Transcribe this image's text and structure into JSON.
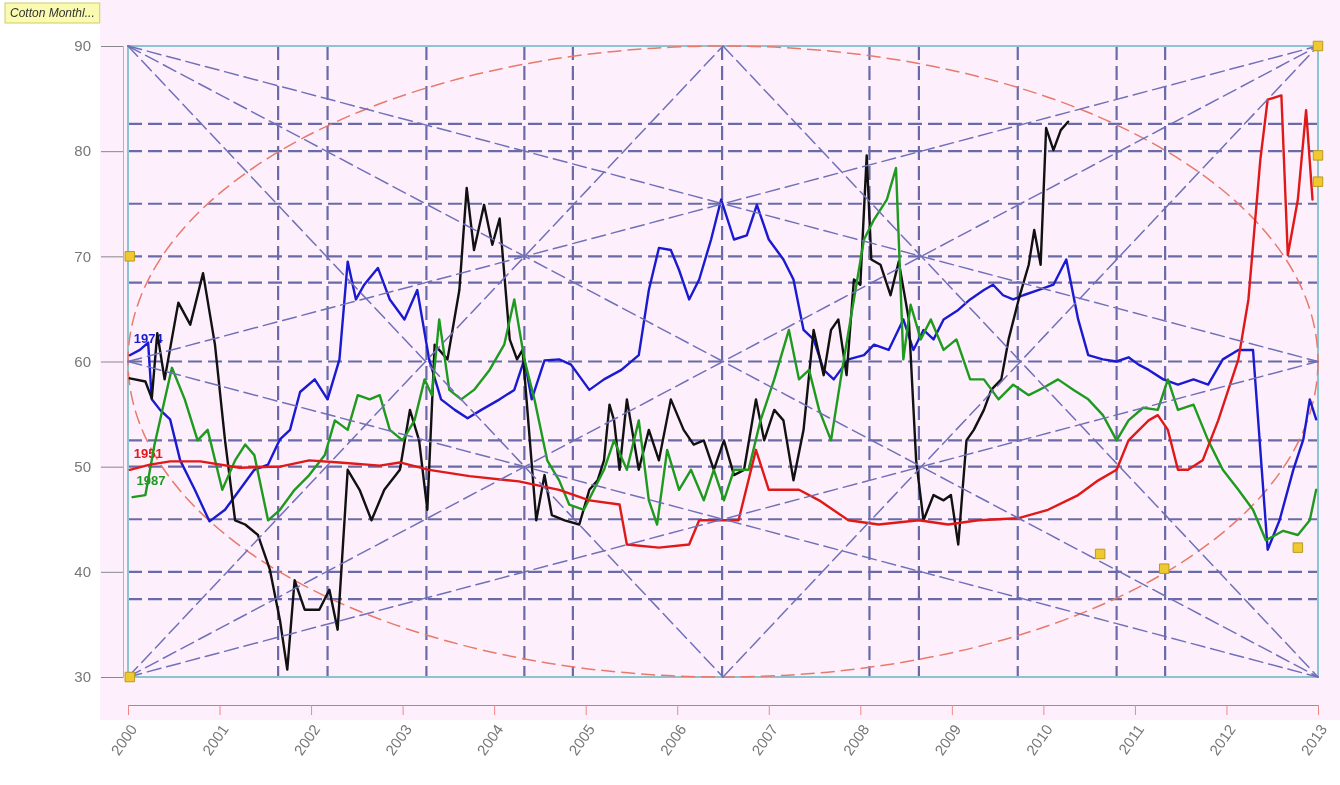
{
  "chart_data": {
    "type": "line",
    "title": "Cotton Monthl...",
    "xlim": [
      2000,
      2013
    ],
    "xticks": [
      2000,
      2001,
      2002,
      2003,
      2004,
      2005,
      2006,
      2007,
      2008,
      2009,
      2010,
      2011,
      2012,
      2013
    ],
    "ylim": [
      30,
      90
    ],
    "yticks": [
      30,
      40,
      50,
      60,
      70,
      80,
      90
    ],
    "grid": false,
    "line_style": "solid",
    "marker": "none",
    "series": [
      {
        "name": "1974",
        "color": "#1a1ad0",
        "x": [
          2000.02,
          2000.13,
          2000.22,
          2000.26,
          2000.35,
          2000.46,
          2000.57,
          2000.73,
          2000.89,
          2001.06,
          2001.22,
          2001.38,
          2001.53,
          2001.66,
          2001.77,
          2001.88,
          2002.04,
          2002.18,
          2002.31,
          2002.4,
          2002.49,
          2002.58,
          2002.73,
          2002.86,
          2003.02,
          2003.16,
          2003.29,
          2003.42,
          2003.57,
          2003.71,
          2003.86,
          2004.06,
          2004.22,
          2004.33,
          2004.41,
          2004.55,
          2004.71,
          2004.84,
          2005.04,
          2005.2,
          2005.39,
          2005.58,
          2005.69,
          2005.8,
          2005.93,
          2006.02,
          2006.13,
          2006.24,
          2006.37,
          2006.48,
          2006.62,
          2006.76,
          2006.87,
          2007.0,
          2007.16,
          2007.27,
          2007.38,
          2007.49,
          2007.6,
          2007.71,
          2007.87,
          2008.04,
          2008.15,
          2008.31,
          2008.47,
          2008.58,
          2008.69,
          2008.8,
          2008.91,
          2009.07,
          2009.2,
          2009.35,
          2009.45,
          2009.56,
          2009.67,
          2009.78,
          2009.95,
          2010.11,
          2010.25,
          2010.38,
          2010.49,
          2010.65,
          2010.8,
          2010.93,
          2011.04,
          2011.15,
          2011.31,
          2011.47,
          2011.64,
          2011.8,
          2011.96,
          2012.13,
          2012.29,
          2012.45,
          2012.58,
          2012.73,
          2012.84,
          2012.91,
          2012.98
        ],
        "values": [
          60.6,
          61.1,
          61.8,
          56.4,
          55.4,
          54.5,
          50.6,
          47.8,
          44.8,
          45.9,
          47.8,
          49.7,
          50.2,
          52.6,
          53.5,
          57.1,
          58.3,
          56.4,
          60.2,
          69.5,
          65.9,
          67.3,
          68.9,
          65.9,
          64.0,
          66.8,
          60.2,
          56.4,
          55.4,
          54.6,
          55.4,
          56.4,
          57.3,
          60.2,
          56.4,
          60.1,
          60.2,
          59.7,
          57.3,
          58.3,
          59.2,
          60.6,
          66.8,
          70.8,
          70.6,
          68.7,
          65.9,
          67.8,
          71.6,
          75.4,
          71.6,
          72.0,
          74.9,
          71.6,
          69.7,
          67.8,
          63.0,
          62.1,
          59.2,
          58.3,
          60.2,
          60.6,
          61.6,
          61.1,
          64.0,
          61.1,
          63.0,
          62.1,
          64.0,
          64.9,
          65.9,
          66.8,
          67.3,
          66.3,
          65.9,
          66.3,
          66.8,
          67.3,
          69.7,
          64.0,
          60.6,
          60.2,
          60.0,
          60.4,
          59.7,
          59.2,
          58.3,
          57.8,
          58.3,
          57.8,
          60.2,
          61.1,
          61.1,
          42.1,
          44.9,
          49.7,
          52.6,
          56.4,
          54.5
        ]
      },
      {
        "color": "#111111",
        "x": [
          2000.02,
          2000.19,
          2000.26,
          2000.32,
          2000.4,
          2000.55,
          2000.68,
          2000.82,
          2000.95,
          2001.06,
          2001.17,
          2001.28,
          2001.42,
          2001.55,
          2001.66,
          2001.74,
          2001.82,
          2001.93,
          2002.09,
          2002.2,
          2002.29,
          2002.4,
          2002.53,
          2002.66,
          2002.8,
          2002.97,
          2003.08,
          2003.18,
          2003.27,
          2003.35,
          2003.49,
          2003.62,
          2003.7,
          2003.78,
          2003.89,
          2003.98,
          2004.06,
          2004.17,
          2004.25,
          2004.31,
          2004.46,
          2004.55,
          2004.63,
          2004.77,
          2004.93,
          2005.04,
          2005.13,
          2005.2,
          2005.26,
          2005.31,
          2005.37,
          2005.45,
          2005.58,
          2005.69,
          2005.8,
          2005.93,
          2006.07,
          2006.18,
          2006.29,
          2006.4,
          2006.51,
          2006.62,
          2006.73,
          2006.86,
          2006.95,
          2007.06,
          2007.16,
          2007.27,
          2007.38,
          2007.49,
          2007.6,
          2007.68,
          2007.76,
          2007.85,
          2007.93,
          2008.0,
          2008.07,
          2008.12,
          2008.22,
          2008.33,
          2008.42,
          2008.53,
          2008.61,
          2008.69,
          2008.8,
          2008.91,
          2008.99,
          2009.07,
          2009.16,
          2009.24,
          2009.35,
          2009.43,
          2009.54,
          2009.62,
          2009.73,
          2009.84,
          2009.9,
          2009.97,
          2010.03,
          2010.11,
          2010.19,
          2010.27
        ],
        "values": [
          58.4,
          58.1,
          56.5,
          62.7,
          58.3,
          65.6,
          63.5,
          68.4,
          61.6,
          52.5,
          44.9,
          44.5,
          43.5,
          40.2,
          35.4,
          30.7,
          39.2,
          36.4,
          36.4,
          38.3,
          34.5,
          49.7,
          47.8,
          44.9,
          47.8,
          49.7,
          55.4,
          52.5,
          45.9,
          61.6,
          60.2,
          66.8,
          76.5,
          70.6,
          74.9,
          71.1,
          73.6,
          62.1,
          60.2,
          61.1,
          44.9,
          49.2,
          45.4,
          44.9,
          44.5,
          47.8,
          48.7,
          50.6,
          55.9,
          54.4,
          49.7,
          56.4,
          49.7,
          53.5,
          50.6,
          56.4,
          53.5,
          52.1,
          52.5,
          49.7,
          52.5,
          49.2,
          49.7,
          56.4,
          52.5,
          55.4,
          54.4,
          48.7,
          53.5,
          63.0,
          58.7,
          63.0,
          64.0,
          58.7,
          67.8,
          67.3,
          79.6,
          69.7,
          69.2,
          66.3,
          69.5,
          64.0,
          50.6,
          44.9,
          47.3,
          46.8,
          47.3,
          42.6,
          52.5,
          53.5,
          55.4,
          57.3,
          58.3,
          62.1,
          65.9,
          69.2,
          72.5,
          69.2,
          82.2,
          80.1,
          82.0,
          82.8
        ]
      },
      {
        "name": "1987",
        "color": "#1e9a1e",
        "x": [
          2000.05,
          2000.19,
          2000.29,
          2000.48,
          2000.62,
          2000.76,
          2000.87,
          2001.03,
          2001.17,
          2001.28,
          2001.38,
          2001.53,
          2001.66,
          2001.82,
          2001.98,
          2002.15,
          2002.26,
          2002.4,
          2002.51,
          2002.64,
          2002.75,
          2002.86,
          2003.0,
          2003.13,
          2003.24,
          2003.32,
          2003.4,
          2003.51,
          2003.64,
          2003.78,
          2003.95,
          2004.11,
          2004.22,
          2004.33,
          2004.44,
          2004.58,
          2004.71,
          2004.82,
          2004.98,
          2005.09,
          2005.2,
          2005.31,
          2005.45,
          2005.58,
          2005.69,
          2005.78,
          2005.89,
          2006.02,
          2006.15,
          2006.29,
          2006.4,
          2006.51,
          2006.62,
          2006.78,
          2006.91,
          2007.06,
          2007.22,
          2007.33,
          2007.44,
          2007.55,
          2007.68,
          2007.82,
          2007.93,
          2008.04,
          2008.15,
          2008.29,
          2008.39,
          2008.47,
          2008.55,
          2008.66,
          2008.77,
          2008.91,
          2009.05,
          2009.2,
          2009.35,
          2009.51,
          2009.67,
          2009.84,
          2010.0,
          2010.16,
          2010.33,
          2010.49,
          2010.65,
          2010.8,
          2010.93,
          2011.09,
          2011.25,
          2011.36,
          2011.47,
          2011.64,
          2011.8,
          2011.96,
          2012.13,
          2012.29,
          2012.43,
          2012.62,
          2012.78,
          2012.91,
          2012.98
        ],
        "values": [
          47.1,
          47.3,
          52.1,
          59.4,
          56.4,
          52.5,
          53.5,
          47.8,
          50.6,
          52.1,
          51.1,
          44.9,
          45.9,
          47.8,
          49.2,
          51.1,
          54.4,
          53.5,
          56.8,
          56.4,
          56.8,
          53.5,
          52.5,
          54.4,
          58.3,
          56.8,
          64.0,
          57.3,
          56.4,
          57.3,
          59.2,
          61.6,
          65.9,
          60.2,
          56.4,
          50.6,
          48.7,
          46.4,
          45.9,
          47.8,
          49.7,
          52.5,
          49.7,
          54.4,
          46.8,
          44.5,
          51.6,
          47.8,
          49.7,
          46.8,
          49.7,
          46.8,
          49.7,
          49.7,
          54.4,
          58.3,
          63.0,
          58.3,
          59.2,
          55.4,
          52.5,
          60.2,
          65.9,
          71.6,
          73.5,
          75.4,
          78.4,
          60.2,
          65.4,
          62.1,
          64.0,
          61.1,
          62.1,
          58.3,
          58.3,
          56.4,
          57.8,
          56.8,
          57.5,
          58.3,
          57.3,
          56.4,
          54.9,
          52.5,
          54.4,
          55.6,
          55.4,
          58.3,
          55.4,
          55.9,
          52.5,
          49.7,
          47.8,
          45.9,
          43.0,
          43.9,
          43.5,
          44.9,
          47.8
        ]
      },
      {
        "name": "1951",
        "color": "#e01818",
        "x": [
          2000.02,
          2000.24,
          2000.46,
          2000.79,
          2001.22,
          2001.66,
          2001.98,
          2002.31,
          2002.75,
          2002.97,
          2003.29,
          2003.73,
          2004.27,
          2004.71,
          2005.04,
          2005.37,
          2005.45,
          2005.8,
          2006.13,
          2006.24,
          2006.67,
          2006.86,
          2007.0,
          2007.33,
          2007.55,
          2007.87,
          2008.2,
          2008.64,
          2008.96,
          2009.29,
          2009.73,
          2010.05,
          2010.38,
          2010.6,
          2010.8,
          2010.93,
          2011.15,
          2011.25,
          2011.36,
          2011.47,
          2011.58,
          2011.74,
          2011.91,
          2012.13,
          2012.24,
          2012.37,
          2012.45,
          2012.6,
          2012.67,
          2012.78,
          2012.87,
          2012.94
        ],
        "values": [
          49.7,
          50.2,
          50.5,
          50.5,
          49.9,
          50.0,
          50.6,
          50.4,
          50.1,
          50.4,
          49.7,
          49.1,
          48.6,
          47.8,
          46.8,
          46.4,
          42.6,
          42.3,
          42.6,
          44.9,
          44.9,
          51.6,
          47.8,
          47.8,
          46.8,
          44.9,
          44.5,
          44.9,
          44.5,
          44.9,
          45.1,
          45.9,
          47.3,
          48.7,
          49.7,
          52.5,
          54.4,
          54.9,
          53.5,
          49.7,
          49.7,
          50.6,
          54.4,
          60.2,
          65.9,
          79.2,
          84.9,
          85.3,
          70.1,
          75.4,
          83.9,
          75.4
        ]
      },
      {
        "color": "#7070b8",
        "line_style": "dashed",
        "x": [
          2000,
          2013
        ],
        "values": [
          90,
          30
        ]
      },
      {
        "color": "#7070b8",
        "line_style": "dashed",
        "x": [
          2000,
          2013
        ],
        "values": [
          90,
          60
        ]
      },
      {
        "color": "#7070b8",
        "line_style": "dashed",
        "x": [
          2000,
          2006.5
        ],
        "values": [
          90,
          30
        ]
      },
      {
        "color": "#7070b8",
        "line_style": "dashed",
        "x": [
          2000,
          2013
        ],
        "values": [
          30,
          90
        ]
      },
      {
        "color": "#7070b8",
        "line_style": "dashed",
        "x": [
          2000,
          2013
        ],
        "values": [
          30,
          60
        ]
      },
      {
        "color": "#7070b8",
        "line_style": "dashed",
        "x": [
          2000,
          2006.5
        ],
        "values": [
          30,
          90
        ]
      },
      {
        "color": "#7070b8",
        "line_style": "dashed",
        "x": [
          2000,
          2013
        ],
        "values": [
          60,
          90
        ]
      },
      {
        "color": "#7070b8",
        "line_style": "dashed",
        "x": [
          2006.5,
          2013
        ],
        "values": [
          30,
          90
        ]
      },
      {
        "color": "#7070b8",
        "line_style": "dashed",
        "x": [
          2000,
          2013
        ],
        "values": [
          60,
          30
        ]
      },
      {
        "color": "#7070b8",
        "line_style": "dashed",
        "x": [
          2006.5,
          2013
        ],
        "values": [
          90,
          30
        ]
      },
      {
        "type": "scatter",
        "marker": "square",
        "color": "#f0c830",
        "x": [
          2000.02,
          2000.02,
          2013,
          2013,
          2013,
          2010.62,
          2011.32,
          2012.78
        ],
        "values": [
          70,
          30,
          90,
          79.6,
          77.1,
          41.7,
          40.3,
          42.3
        ]
      }
    ],
    "ref_lines": [
      {
        "axis": "y",
        "value": 82.6,
        "color": "#6a6aa8",
        "line_style": "dashed"
      },
      {
        "axis": "y",
        "value": 80,
        "color": "#6a6aa8",
        "line_style": "dashed"
      },
      {
        "axis": "y",
        "value": 75,
        "color": "#6a6aa8",
        "line_style": "dashed"
      },
      {
        "axis": "y",
        "value": 70,
        "color": "#6a6aa8",
        "line_style": "dashed"
      },
      {
        "axis": "y",
        "value": 67.5,
        "color": "#6a6aa8",
        "line_style": "dashed"
      },
      {
        "axis": "y",
        "value": 60,
        "color": "#6a6aa8",
        "line_style": "dashed"
      },
      {
        "axis": "y",
        "value": 52.5,
        "color": "#6a6aa8",
        "line_style": "dashed"
      },
      {
        "axis": "y",
        "value": 50,
        "color": "#6a6aa8",
        "line_style": "dashed"
      },
      {
        "axis": "y",
        "value": 45,
        "color": "#6a6aa8",
        "line_style": "dashed"
      },
      {
        "axis": "y",
        "value": 40,
        "color": "#6a6aa8",
        "line_style": "dashed"
      },
      {
        "axis": "y",
        "value": 37.4,
        "color": "#6a6aa8",
        "line_style": "dashed"
      },
      {
        "axis": "x",
        "value": 2001.64,
        "color": "#6a6aa8",
        "line_style": "dashed"
      },
      {
        "axis": "x",
        "value": 2002.18,
        "color": "#6a6aa8",
        "line_style": "dashed"
      },
      {
        "axis": "x",
        "value": 2003.26,
        "color": "#6a6aa8",
        "line_style": "dashed"
      },
      {
        "axis": "x",
        "value": 2004.33,
        "color": "#6a6aa8",
        "line_style": "dashed"
      },
      {
        "axis": "x",
        "value": 2004.86,
        "color": "#6a6aa8",
        "line_style": "dashed"
      },
      {
        "axis": "x",
        "value": 2006.49,
        "color": "#6a6aa8",
        "line_style": "dashed"
      },
      {
        "axis": "x",
        "value": 2008.1,
        "color": "#6a6aa8",
        "line_style": "dashed"
      },
      {
        "axis": "x",
        "value": 2008.64,
        "color": "#6a6aa8",
        "line_style": "dashed"
      },
      {
        "axis": "x",
        "value": 2009.72,
        "color": "#6a6aa8",
        "line_style": "dashed"
      },
      {
        "axis": "x",
        "value": 2010.8,
        "color": "#6a6aa8",
        "line_style": "dashed"
      },
      {
        "axis": "x",
        "value": 2011.33,
        "color": "#6a6aa8",
        "line_style": "dashed"
      }
    ]
  }
}
